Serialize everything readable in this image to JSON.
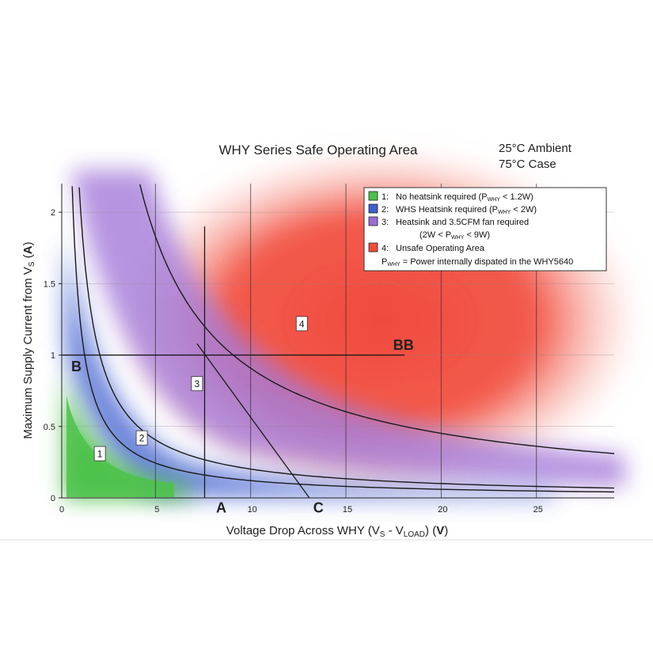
{
  "chart_data": {
    "type": "line",
    "title": "WHY Series Safe Operating Area",
    "conditions": [
      "25°C Ambient",
      "75°C Case"
    ],
    "ylabel": {
      "prefix": "Maximum Supply Current from V",
      "sub": "S",
      "unit": "A"
    },
    "xlabel": {
      "prefix": "Voltage Drop Across WHY (V",
      "s": "S",
      "minus": " - V",
      "load": "LOAD",
      "close": ") ",
      "unit": "V"
    },
    "xlim": [
      0,
      29
    ],
    "ylim": [
      0,
      2.2
    ],
    "xticks": [
      0,
      5,
      10,
      15,
      20,
      25
    ],
    "xtick_labels": [
      "0",
      "5",
      "10",
      "15",
      "20",
      "25"
    ],
    "yticks": [
      0,
      0.5,
      1,
      1.5,
      2
    ],
    "ytick_labels": [
      "0",
      "0.5",
      "1",
      "1.5",
      "2"
    ],
    "grid": true,
    "legend_position": "top-right",
    "legend": [
      {
        "color": "#4cc24a",
        "num": "1:",
        "pre": "No heatsink required (P",
        "sub": "WHY",
        "post": " < 1.2W)"
      },
      {
        "color": "#3f5fd0",
        "num": "2:",
        "pre": "WHS Heatsink required (P",
        "sub": "WHY",
        "post": " < 2W)"
      },
      {
        "color": "#9b6ad6",
        "num": "3:",
        "pre": "Heatsink and 3.5CFM fan required",
        "sub": "",
        "post": ""
      },
      {
        "color": "",
        "num": "",
        "pre": "(2W < P",
        "sub": "WHY",
        "post": " < 9W)"
      },
      {
        "color": "#f04a3c",
        "num": "4:",
        "pre": "Unsafe Operating Area",
        "sub": "",
        "post": ""
      }
    ],
    "legend_note": {
      "pre": "P",
      "sub": "WHY",
      "post": " = Power internally dispated in the WHY5640"
    },
    "series": [
      {
        "power_w": 1.2,
        "x": [
          0.55,
          1,
          2,
          3,
          4,
          6,
          8,
          10,
          15,
          20,
          25,
          29
        ],
        "values": [
          2.18,
          1.2,
          0.6,
          0.4,
          0.3,
          0.2,
          0.15,
          0.12,
          0.08,
          0.06,
          0.048,
          0.041
        ]
      },
      {
        "power_w": 2,
        "x": [
          0.92,
          1.2,
          2,
          3,
          4,
          6,
          8,
          10,
          15,
          20,
          25,
          29
        ],
        "values": [
          2.17,
          1.67,
          1.0,
          0.67,
          0.5,
          0.33,
          0.25,
          0.2,
          0.133,
          0.1,
          0.08,
          0.069
        ]
      },
      {
        "power_w": 9,
        "x": [
          4.1,
          5,
          6,
          8,
          10,
          12,
          15,
          20,
          25,
          29
        ],
        "values": [
          2.2,
          1.8,
          1.5,
          1.125,
          0.9,
          0.75,
          0.6,
          0.45,
          0.36,
          0.31
        ]
      }
    ],
    "guide_lines": [
      {
        "label": "A",
        "x": [
          7.5,
          7.5
        ],
        "values": [
          1.9,
          0.0
        ]
      },
      {
        "label": "BB",
        "x": [
          0,
          18
        ],
        "values": [
          1.0,
          1.0
        ]
      },
      {
        "label": "C",
        "x": [
          7.1,
          13.0
        ],
        "values": [
          1.08,
          0.0
        ]
      }
    ],
    "region_labels": [
      {
        "label": "1",
        "x": 2.0,
        "y": 0.31
      },
      {
        "label": "2",
        "x": 4.2,
        "y": 0.42
      },
      {
        "label": "3",
        "x": 7.1,
        "y": 0.8
      },
      {
        "label": "4",
        "x": 12.6,
        "y": 1.22
      }
    ],
    "letters": [
      {
        "label": "B",
        "x": 0.5,
        "y": 0.92
      },
      {
        "label": "BB",
        "x": 17.4,
        "y": 1.07
      },
      {
        "label": "A",
        "x": 8.1,
        "y": -0.07
      },
      {
        "label": "C",
        "x": 13.2,
        "y": -0.07
      }
    ],
    "region_colors": {
      "safe": "#4cc24a",
      "heatsink": "#3f5fd0",
      "fan": "#9b6ad6",
      "unsafe": "#f04a3c"
    }
  }
}
